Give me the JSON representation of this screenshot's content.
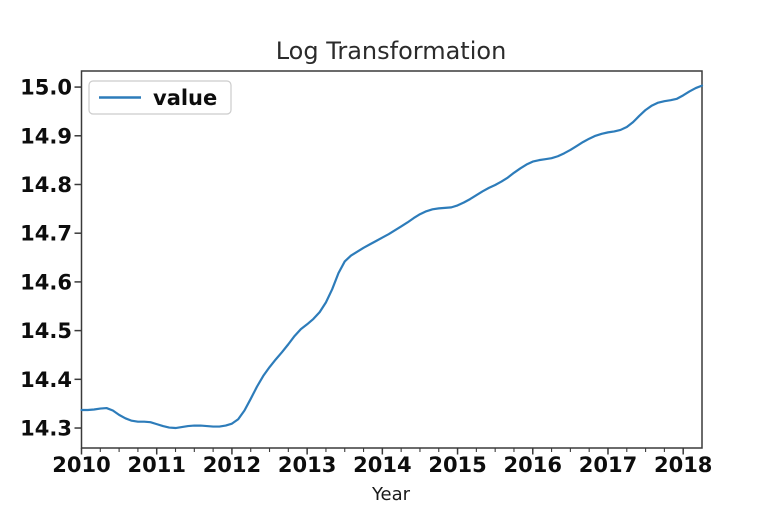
{
  "figure": {
    "title": "Log Transformation",
    "xlabel": "Year",
    "legend_label": "value"
  },
  "colors": {
    "line": "#2d7cba",
    "spine": "#3a3a3a",
    "tick": "#3a3a3a",
    "tick_text": "#0d0d0d",
    "title_text": "#2b2b2b",
    "legend_border": "#cccccc",
    "background": "#ffffff"
  },
  "chart_data": {
    "type": "line",
    "title": "Log Transformation",
    "xlabel": "Year",
    "ylabel": "",
    "legend_entries": [
      "value"
    ],
    "legend_position": "upper left",
    "grid": false,
    "xlim": [
      2010,
      2018.25
    ],
    "ylim": [
      14.259,
      15.033
    ],
    "x_ticks": [
      2010,
      2011,
      2012,
      2013,
      2014,
      2015,
      2016,
      2017,
      2018
    ],
    "x_tick_labels": [
      "2010",
      "2011",
      "2012",
      "2013",
      "2014",
      "2015",
      "2016",
      "2017",
      "2018"
    ],
    "x_minor_tick_step": 0.25,
    "y_ticks": [
      14.3,
      14.4,
      14.5,
      14.6,
      14.7,
      14.8,
      14.9,
      15.0
    ],
    "y_tick_labels": [
      "14.3",
      "14.4",
      "14.5",
      "14.6",
      "14.7",
      "14.8",
      "14.9",
      "15.0"
    ],
    "series": [
      {
        "name": "value",
        "color": "#2d7cba",
        "frequency": "monthly",
        "x_start": 2010.0,
        "x_step_years": 0.0833333,
        "x_end": 2018.25,
        "values": [
          14.337,
          14.337,
          14.338,
          14.34,
          14.341,
          14.336,
          14.327,
          14.32,
          14.315,
          14.313,
          14.313,
          14.312,
          14.308,
          14.304,
          14.301,
          14.3,
          14.302,
          14.304,
          14.305,
          14.305,
          14.304,
          14.303,
          14.303,
          14.305,
          14.309,
          14.318,
          14.336,
          14.36,
          14.385,
          14.407,
          14.425,
          14.441,
          14.456,
          14.472,
          14.489,
          14.503,
          14.513,
          14.524,
          14.538,
          14.558,
          14.585,
          14.618,
          14.642,
          14.654,
          14.662,
          14.67,
          14.677,
          14.684,
          14.691,
          14.698,
          14.706,
          14.714,
          14.722,
          14.731,
          14.739,
          14.745,
          14.749,
          14.751,
          14.752,
          14.753,
          14.757,
          14.763,
          14.77,
          14.778,
          14.786,
          14.793,
          14.799,
          14.806,
          14.814,
          14.824,
          14.833,
          14.841,
          14.847,
          14.85,
          14.852,
          14.854,
          14.858,
          14.864,
          14.871,
          14.879,
          14.887,
          14.894,
          14.9,
          14.904,
          14.907,
          14.909,
          14.912,
          14.918,
          14.928,
          14.941,
          14.953,
          14.962,
          14.968,
          14.971,
          14.973,
          14.976,
          14.983,
          14.991,
          14.998,
          15.003
        ]
      }
    ]
  }
}
